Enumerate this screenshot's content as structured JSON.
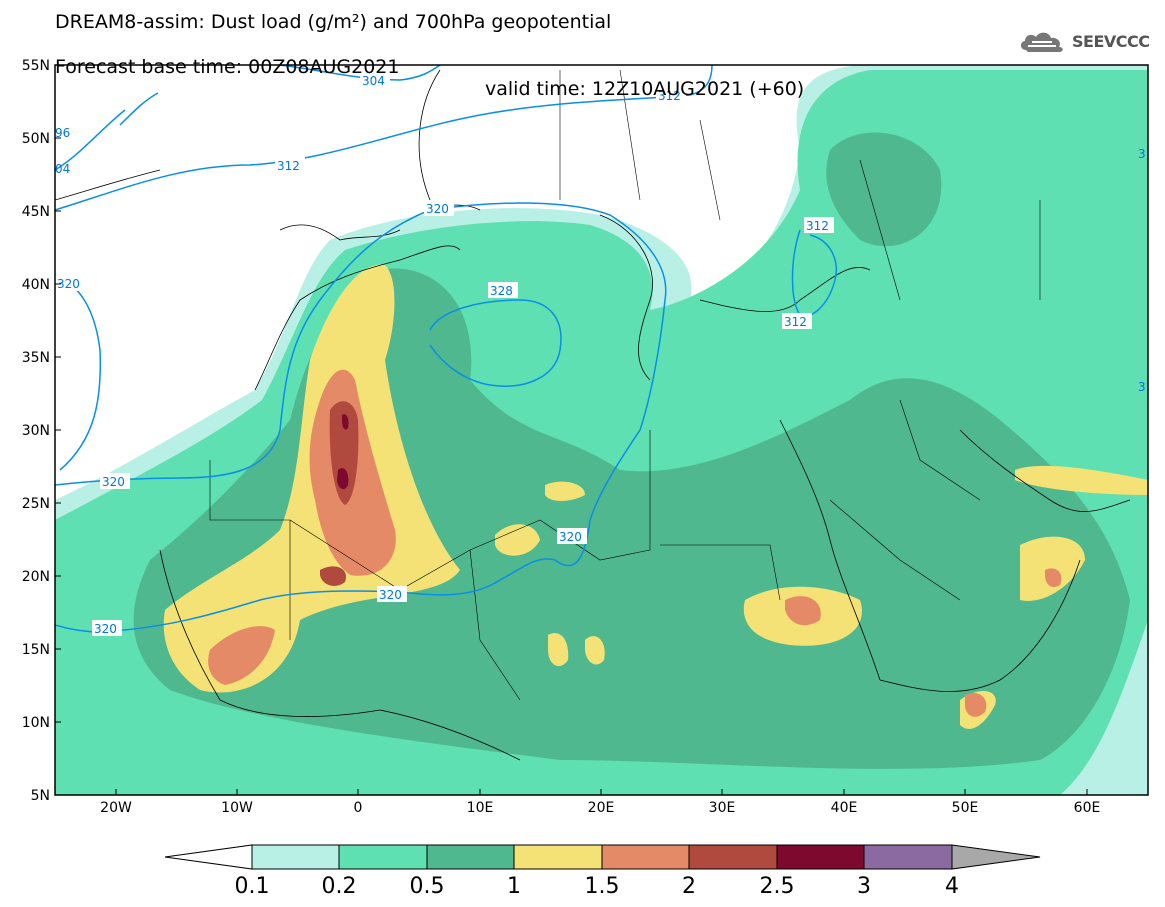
{
  "title": {
    "line1": "DREAM8-assim: Dust load (g/m²) and 700hPa geopotential",
    "base_time": "Forecast base time: 00Z08AUG2021",
    "valid_time": "valid time: 12Z10AUG2021 (+60)"
  },
  "logo": {
    "text": "SEEVCCC",
    "icon": "cloud-icon"
  },
  "map": {
    "lon_labels": [
      "20W",
      "10W",
      "0",
      "10E",
      "20E",
      "30E",
      "40E",
      "50E",
      "60E"
    ],
    "lat_labels": [
      "55N",
      "50N",
      "45N",
      "40N",
      "35N",
      "30N",
      "25N",
      "20N",
      "15N",
      "10N",
      "5N"
    ],
    "contour_labels": [
      "304",
      "312",
      "312",
      "96",
      "04",
      "320",
      "320",
      "328",
      "312",
      "312",
      "320",
      "320",
      "320",
      "320",
      "3",
      "3"
    ],
    "contour_color": "#0a8fe6"
  },
  "colorbar": {
    "ticks": [
      "0.1",
      "0.2",
      "0.5",
      "1",
      "1.5",
      "2",
      "2.5",
      "3",
      "4"
    ],
    "colors": [
      "#ffffff",
      "#b9f0e6",
      "#5fe0b2",
      "#50b88f",
      "#f4e276",
      "#e58a66",
      "#b04a3e",
      "#7d0a2e",
      "#8a6aa0",
      "#a8a8a8"
    ]
  }
}
